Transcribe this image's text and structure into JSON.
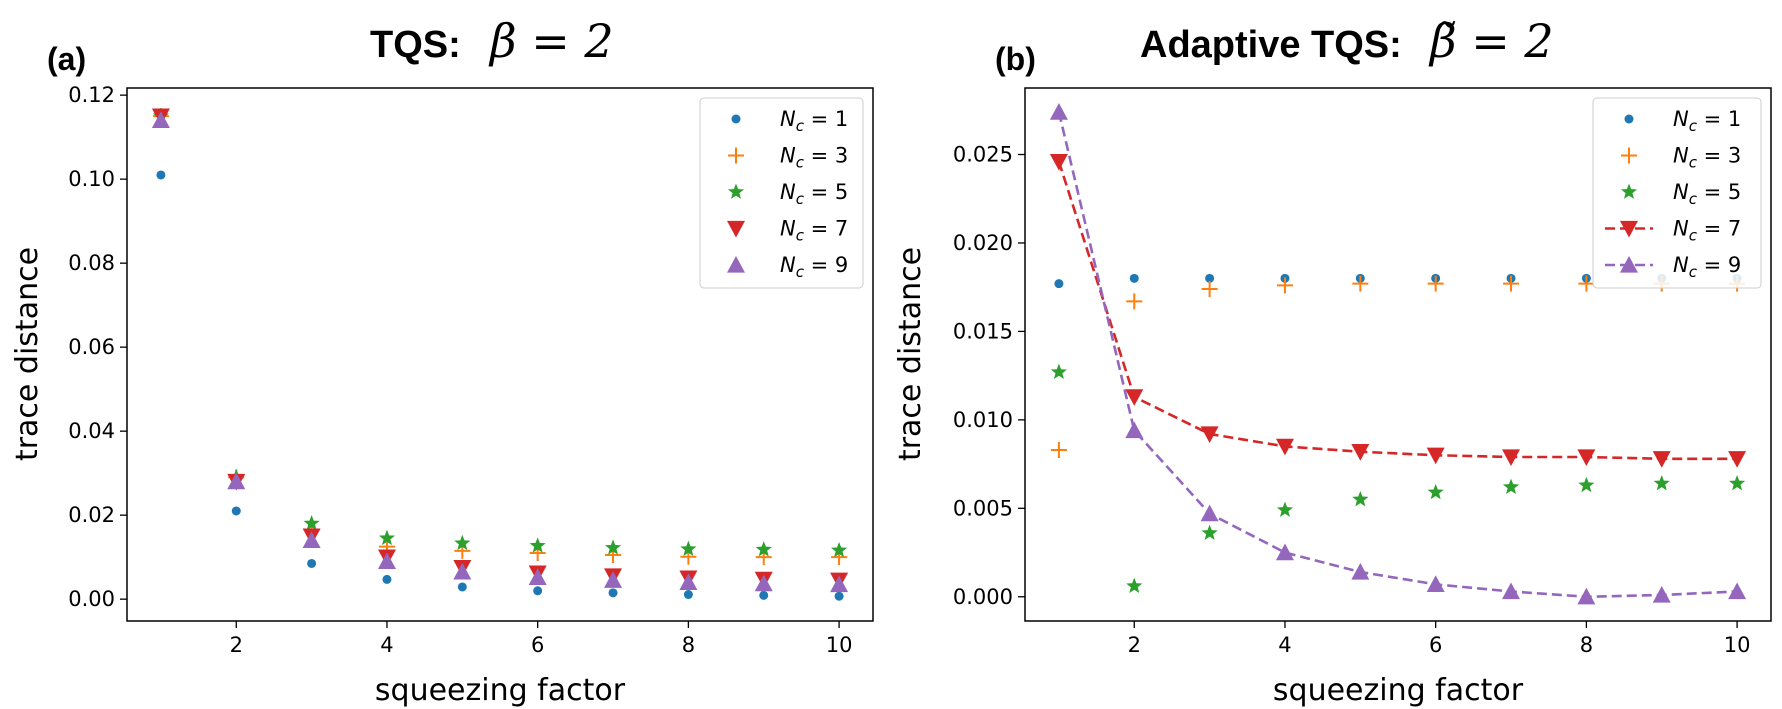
{
  "colors": {
    "Nc1": "#1f77b4",
    "Nc3": "#ff7f0e",
    "Nc5": "#2ca02c",
    "Nc7": "#d62728",
    "Nc9": "#9467bd"
  },
  "chart_data": [
    {
      "type": "scatter",
      "panel_label": "(a)",
      "title": "TQS:",
      "title_math": "β = 2",
      "xlabel": "squeezing factor",
      "ylabel": "trace distance",
      "xlim": [
        0.55,
        10.45
      ],
      "ylim": [
        -0.0052,
        0.1217
      ],
      "xticks": [
        2,
        4,
        6,
        8,
        10
      ],
      "xtick_labels": [
        "2",
        "4",
        "6",
        "8",
        "10"
      ],
      "yticks": [
        0.0,
        0.02,
        0.04,
        0.06,
        0.08,
        0.1,
        0.12
      ],
      "ytick_labels": [
        "0.00",
        "0.02",
        "0.04",
        "0.06",
        "0.08",
        "0.10",
        "0.12"
      ],
      "grid": false,
      "legend_position": "top-right",
      "x": [
        1,
        2,
        3,
        4,
        5,
        6,
        7,
        8,
        9,
        10
      ],
      "series": [
        {
          "name": "Nc = 1",
          "sub": "c",
          "num": "1",
          "marker": "circle",
          "color_key": "Nc1",
          "line": false,
          "values": [
            0.101,
            0.021,
            0.0085,
            0.0047,
            0.0029,
            0.002,
            0.0015,
            0.0011,
            0.0009,
            0.0007
          ]
        },
        {
          "name": "Nc = 3",
          "sub": "c",
          "num": "3",
          "marker": "plus",
          "color_key": "Nc3",
          "line": false,
          "values": [
            0.115,
            0.029,
            0.0165,
            0.0125,
            0.0115,
            0.011,
            0.0105,
            0.0101,
            0.01,
            0.01
          ]
        },
        {
          "name": "Nc = 5",
          "sub": "c",
          "num": "5",
          "marker": "star",
          "color_key": "Nc5",
          "line": false,
          "values": [
            0.115,
            0.029,
            0.018,
            0.0145,
            0.0133,
            0.0127,
            0.0122,
            0.0119,
            0.0118,
            0.0116
          ]
        },
        {
          "name": "Nc = 7",
          "sub": "c",
          "num": "7",
          "marker": "triangle-down",
          "color_key": "Nc7",
          "line": false,
          "values": [
            0.115,
            0.028,
            0.015,
            0.01,
            0.0075,
            0.0062,
            0.0055,
            0.005,
            0.0047,
            0.0045
          ]
        },
        {
          "name": "Nc = 9",
          "sub": "c",
          "num": "9",
          "marker": "triangle-up",
          "color_key": "Nc9",
          "line": false,
          "values": [
            0.114,
            0.028,
            0.014,
            0.009,
            0.0065,
            0.0052,
            0.0045,
            0.004,
            0.0037,
            0.0035
          ]
        }
      ]
    },
    {
      "type": "line",
      "panel_label": "(b)",
      "title": "Adaptive TQS:",
      "title_math": "β̃ = 2",
      "xlabel": "squeezing factor",
      "ylabel": "trace distance",
      "xlim": [
        0.55,
        10.45
      ],
      "ylim": [
        -0.00137,
        0.02876
      ],
      "xticks": [
        2,
        4,
        6,
        8,
        10
      ],
      "xtick_labels": [
        "2",
        "4",
        "6",
        "8",
        "10"
      ],
      "yticks": [
        0.0,
        0.005,
        0.01,
        0.015,
        0.02,
        0.025
      ],
      "ytick_labels": [
        "0.000",
        "0.005",
        "0.010",
        "0.015",
        "0.020",
        "0.025"
      ],
      "grid": false,
      "legend_position": "top-right",
      "x": [
        1,
        2,
        3,
        4,
        5,
        6,
        7,
        8,
        9,
        10
      ],
      "series": [
        {
          "name": "Nc = 1",
          "sub": "c",
          "num": "1",
          "marker": "circle",
          "color_key": "Nc1",
          "line": false,
          "values": [
            0.0177,
            0.018,
            0.018,
            0.018,
            0.018,
            0.018,
            0.018,
            0.018,
            0.018,
            0.018
          ]
        },
        {
          "name": "Nc = 3",
          "sub": "c",
          "num": "3",
          "marker": "plus",
          "color_key": "Nc3",
          "line": false,
          "values": [
            0.0083,
            0.0167,
            0.0174,
            0.0176,
            0.0177,
            0.0177,
            0.0177,
            0.0177,
            0.0177,
            0.0177
          ]
        },
        {
          "name": "Nc = 5",
          "sub": "c",
          "num": "5",
          "marker": "star",
          "color_key": "Nc5",
          "line": false,
          "values": [
            0.0127,
            0.0006,
            0.0036,
            0.0049,
            0.0055,
            0.0059,
            0.0062,
            0.0063,
            0.0064,
            0.0064
          ]
        },
        {
          "name": "Nc = 7",
          "sub": "c",
          "num": "7",
          "marker": "triangle-down",
          "color_key": "Nc7",
          "line": true,
          "values": [
            0.0246,
            0.0113,
            0.0092,
            0.0085,
            0.0082,
            0.008,
            0.0079,
            0.0079,
            0.0078,
            0.0078
          ]
        },
        {
          "name": "Nc = 9",
          "sub": "c",
          "num": "9",
          "marker": "triangle-up",
          "color_key": "Nc9",
          "line": true,
          "values": [
            0.0274,
            0.0094,
            0.0047,
            0.0025,
            0.0014,
            0.0007,
            0.0003,
            0.0,
            0.0001,
            0.0003
          ]
        }
      ]
    }
  ]
}
